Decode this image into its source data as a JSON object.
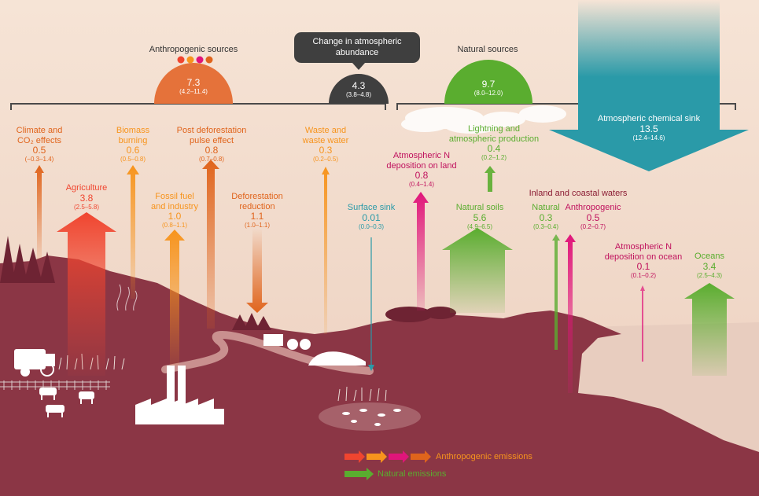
{
  "header": {
    "anthropogenic_title": "Anthropogenic sources",
    "natural_title": "Natural sources",
    "change_title": "Change in atmospheric abundance"
  },
  "domes": {
    "anthropogenic": {
      "value": "7.3",
      "range": "(4.2–11.4)",
      "color": "#e5723a"
    },
    "change": {
      "value": "4.3",
      "range": "(3.8–4.8)",
      "color": "#3f3f3f"
    },
    "natural": {
      "value": "9.7",
      "range": "(8.0–12.0)",
      "color": "#5aad2f"
    }
  },
  "sink": {
    "name": "Atmospheric chemical sink",
    "value": "13.5",
    "range": "(12.4–14.6)",
    "color": "#2a9aa8"
  },
  "flows": {
    "climate": {
      "name1": "Climate and",
      "name2": "CO₂ effects",
      "value": "0.5",
      "range": "(−0.3–1.4)"
    },
    "agriculture": {
      "name": "Agriculture",
      "value": "3.8",
      "range": "(2.5–5.8)"
    },
    "biomass": {
      "name1": "Biomass",
      "name2": "burning",
      "value": "0.6",
      "range": "(0.5–0.8)"
    },
    "fossil": {
      "name1": "Fossil fuel",
      "name2": "and industry",
      "value": "1.0",
      "range": "(0.8–1.1)"
    },
    "postdef": {
      "name1": "Post deforestation",
      "name2": "pulse effect",
      "value": "0.8",
      "range": "(0.7–0.8)"
    },
    "deforest": {
      "name1": "Deforestation",
      "name2": "reduction",
      "value": "1.1",
      "range": "(1.0–1.1)"
    },
    "waste": {
      "name1": "Waste and",
      "name2": "waste water",
      "value": "0.3",
      "range": "(0.2–0.5)"
    },
    "surface_sink": {
      "name": "Surface sink",
      "value": "0.01",
      "range": "(0.0–0.3)"
    },
    "deposition_land": {
      "name1": "Atmospheric N",
      "name2": "deposition on land",
      "value": "0.8",
      "range": "(0.4–1.4)"
    },
    "lightning": {
      "name1": "Lightning and",
      "name2": "atmospheric production",
      "value": "0.4",
      "range": "(0.2–1.2)"
    },
    "soils": {
      "name": "Natural soils",
      "value": "5.6",
      "range": "(4.9–6.5)"
    },
    "inland_title": "Inland and coastal waters",
    "inland_natural": {
      "name": "Natural",
      "value": "0.3",
      "range": "(0.3–0.4)"
    },
    "inland_anthro": {
      "name": "Anthropogenic",
      "value": "0.5",
      "range": "(0.2–0.7)"
    },
    "deposition_ocean": {
      "name1": "Atmospheric N",
      "name2": "deposition on ocean",
      "value": "0.1",
      "range": "(0.1–0.2)"
    },
    "oceans": {
      "name": "Oceans",
      "value": "3.4",
      "range": "(2.5–4.3)"
    }
  },
  "legend": {
    "anthropogenic": "Anthropogenic emissions",
    "natural": "Natural emissions",
    "colors": [
      "#f0452f",
      "#f7941d",
      "#e0157a",
      "#e0641c"
    ],
    "natural_color": "#5aad2f"
  },
  "colors": {
    "sky": "#f3dfd1",
    "land": "#8b3645",
    "sea": "#e8cdbf"
  }
}
